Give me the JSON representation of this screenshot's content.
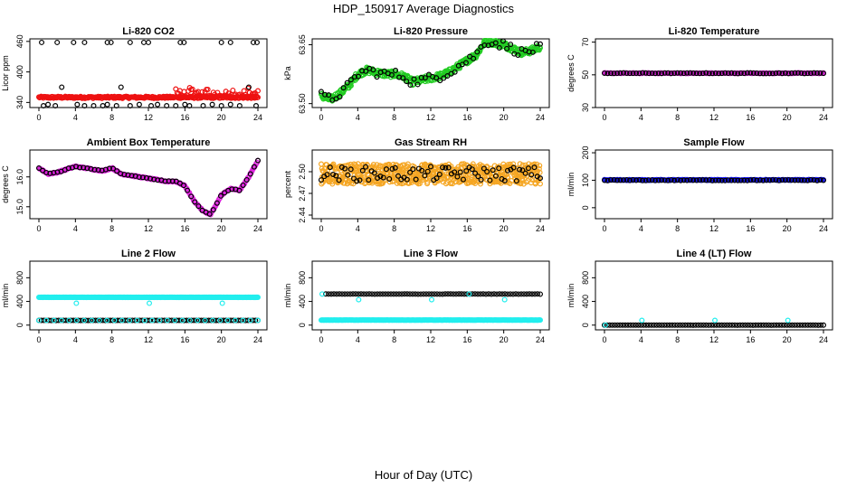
{
  "figure": {
    "title": "HDP_150917  Average Diagnostics",
    "xlabel": "Hour of Day (UTC)"
  },
  "colors": {
    "black": "#000000",
    "red": "#ee1111",
    "green": "#22cc22",
    "magenta": "#dd22dd",
    "orange": "#f5a623",
    "blue": "#1a1aff",
    "cyan": "#22eeee"
  },
  "chart_data": [
    {
      "id": "co2",
      "type": "scatter",
      "title": "Li-820 CO2",
      "ylabel": "Licor ppm",
      "xlim": [
        0,
        24
      ],
      "ylim": [
        330,
        465
      ],
      "xticks": [
        "0",
        "4",
        "8",
        "12",
        "16",
        "20",
        "24"
      ],
      "yticks": [
        "340",
        "400",
        "460"
      ],
      "series": [
        {
          "name": "main",
          "color": "red",
          "fn": "flat",
          "base": 350,
          "noise": 2,
          "n": 300
        },
        {
          "name": "spikes",
          "color": "red",
          "fn": "spike",
          "base": 352,
          "amp": 22,
          "n": 60,
          "start": 15
        },
        {
          "name": "high",
          "color": "black",
          "values": [
            [
              0.3,
              458
            ],
            [
              2,
              458
            ],
            [
              3.8,
              458
            ],
            [
              5,
              458
            ],
            [
              7.5,
              458
            ],
            [
              7.9,
              458
            ],
            [
              10,
              458
            ],
            [
              11.5,
              458
            ],
            [
              12,
              458
            ],
            [
              15.5,
              458
            ],
            [
              15.9,
              458
            ],
            [
              20,
              458
            ],
            [
              21,
              458
            ],
            [
              23.5,
              458
            ],
            [
              23.9,
              458
            ]
          ]
        },
        {
          "name": "low",
          "color": "black",
          "values": [
            [
              0.5,
              333
            ],
            [
              1,
              336
            ],
            [
              1.8,
              333
            ],
            [
              2.5,
              370
            ],
            [
              4.2,
              336
            ],
            [
              5,
              333
            ],
            [
              6,
              333
            ],
            [
              7,
              333
            ],
            [
              7.5,
              336
            ],
            [
              8.5,
              333
            ],
            [
              9,
              370
            ],
            [
              10,
              333
            ],
            [
              11,
              336
            ],
            [
              12.3,
              333
            ],
            [
              13,
              336
            ],
            [
              14,
              333
            ],
            [
              15,
              333
            ],
            [
              16,
              336
            ],
            [
              16.5,
              333
            ],
            [
              18,
              333
            ],
            [
              19,
              336
            ],
            [
              20,
              333
            ],
            [
              21,
              336
            ],
            [
              22,
              333
            ],
            [
              23,
              370
            ],
            [
              23.8,
              333
            ]
          ]
        }
      ]
    },
    {
      "id": "pressure",
      "type": "scatter",
      "title": "Li-820 Pressure",
      "ylabel": "kPa",
      "xlim": [
        0,
        24
      ],
      "ylim": [
        63.49,
        63.665
      ],
      "xticks": [
        "0",
        "4",
        "8",
        "12",
        "16",
        "20",
        "24"
      ],
      "yticks": [
        "63.50",
        "63.65"
      ],
      "series": [
        {
          "name": "main",
          "color": "green",
          "fn": "curve",
          "curve": [
            [
              0,
              63.52
            ],
            [
              1,
              63.51
            ],
            [
              2,
              63.525
            ],
            [
              3,
              63.545
            ],
            [
              4,
              63.575
            ],
            [
              5,
              63.585
            ],
            [
              6,
              63.58
            ],
            [
              7,
              63.575
            ],
            [
              8,
              63.575
            ],
            [
              9,
              63.57
            ],
            [
              10,
              63.555
            ],
            [
              11,
              63.56
            ],
            [
              12,
              63.565
            ],
            [
              13,
              63.57
            ],
            [
              14,
              63.58
            ],
            [
              15,
              63.595
            ],
            [
              16,
              63.61
            ],
            [
              17,
              63.625
            ],
            [
              18,
              63.66
            ],
            [
              19,
              63.655
            ],
            [
              20,
              63.65
            ],
            [
              21,
              63.64
            ],
            [
              22,
              63.63
            ],
            [
              23,
              63.635
            ],
            [
              24,
              63.645
            ]
          ],
          "noise": 0.008,
          "n": 420
        },
        {
          "name": "avg",
          "color": "black",
          "fn": "curve",
          "curve": [
            [
              0,
              63.52
            ],
            [
              1,
              63.51
            ],
            [
              2,
              63.525
            ],
            [
              3,
              63.545
            ],
            [
              4,
              63.575
            ],
            [
              5,
              63.585
            ],
            [
              6,
              63.58
            ],
            [
              7,
              63.575
            ],
            [
              8,
              63.575
            ],
            [
              9,
              63.57
            ],
            [
              10,
              63.555
            ],
            [
              11,
              63.56
            ],
            [
              12,
              63.565
            ],
            [
              13,
              63.57
            ],
            [
              14,
              63.58
            ],
            [
              15,
              63.595
            ],
            [
              16,
              63.61
            ],
            [
              17,
              63.625
            ],
            [
              18,
              63.66
            ],
            [
              19,
              63.655
            ],
            [
              20,
              63.65
            ],
            [
              21,
              63.64
            ],
            [
              22,
              63.63
            ],
            [
              23,
              63.635
            ],
            [
              24,
              63.645
            ]
          ],
          "noise": 0.012,
          "n": 60
        }
      ]
    },
    {
      "id": "licor_temp",
      "type": "scatter",
      "title": "Li-820 Temperature",
      "ylabel": "degrees C",
      "xlim": [
        0,
        24
      ],
      "ylim": [
        30,
        72
      ],
      "xticks": [
        "0",
        "4",
        "8",
        "12",
        "16",
        "20",
        "24"
      ],
      "yticks": [
        "30",
        "50",
        "70"
      ],
      "series": [
        {
          "name": "main",
          "color": "magenta",
          "fn": "flat",
          "base": 51,
          "noise": 0.2,
          "n": 200
        },
        {
          "name": "avg",
          "color": "black",
          "fn": "flat",
          "base": 51,
          "noise": 0.2,
          "n": 70
        }
      ]
    },
    {
      "id": "box_temp",
      "type": "scatter",
      "title": "Ambient Box Temperature",
      "ylabel": "degrees C",
      "xlim": [
        0,
        24
      ],
      "ylim": [
        14.6,
        16.9
      ],
      "xticks": [
        "0",
        "4",
        "8",
        "12",
        "16",
        "20",
        "24"
      ],
      "yticks": [
        "15.0",
        "16.0"
      ],
      "series": [
        {
          "name": "main",
          "color": "magenta",
          "fn": "curve",
          "curve": [
            [
              0,
              16.3
            ],
            [
              1,
              16.1
            ],
            [
              2,
              16.15
            ],
            [
              3,
              16.25
            ],
            [
              4,
              16.35
            ],
            [
              5,
              16.3
            ],
            [
              6,
              16.25
            ],
            [
              7,
              16.2
            ],
            [
              8,
              16.3
            ],
            [
              9,
              16.1
            ],
            [
              10,
              16.05
            ],
            [
              11,
              16.0
            ],
            [
              12,
              15.95
            ],
            [
              13,
              15.9
            ],
            [
              14,
              15.85
            ],
            [
              15,
              15.85
            ],
            [
              16,
              15.7
            ],
            [
              17,
              15.2
            ],
            [
              18,
              14.85
            ],
            [
              18.8,
              14.75
            ],
            [
              19.5,
              15.1
            ],
            [
              20,
              15.4
            ],
            [
              21,
              15.6
            ],
            [
              22,
              15.55
            ],
            [
              23,
              16.0
            ],
            [
              24,
              16.55
            ]
          ],
          "noise": 0.02,
          "n": 260
        },
        {
          "name": "avg",
          "color": "black",
          "fn": "curve",
          "curve": [
            [
              0,
              16.3
            ],
            [
              1,
              16.1
            ],
            [
              2,
              16.15
            ],
            [
              3,
              16.25
            ],
            [
              4,
              16.35
            ],
            [
              5,
              16.3
            ],
            [
              6,
              16.25
            ],
            [
              7,
              16.2
            ],
            [
              8,
              16.3
            ],
            [
              9,
              16.1
            ],
            [
              10,
              16.05
            ],
            [
              11,
              16.0
            ],
            [
              12,
              15.95
            ],
            [
              13,
              15.9
            ],
            [
              14,
              15.85
            ],
            [
              15,
              15.85
            ],
            [
              16,
              15.7
            ],
            [
              17,
              15.2
            ],
            [
              18,
              14.85
            ],
            [
              18.8,
              14.75
            ],
            [
              19.5,
              15.1
            ],
            [
              20,
              15.4
            ],
            [
              21,
              15.6
            ],
            [
              22,
              15.55
            ],
            [
              23,
              16.0
            ],
            [
              24,
              16.55
            ]
          ],
          "noise": 0.015,
          "n": 60
        }
      ]
    },
    {
      "id": "rh",
      "type": "scatter",
      "title": "Gas Stream RH",
      "ylabel": "percent",
      "xlim": [
        0,
        24
      ],
      "ylim": [
        2.435,
        2.53
      ],
      "xticks": [
        "0",
        "4",
        "8",
        "12",
        "16",
        "20",
        "24"
      ],
      "yticks": [
        "2.44",
        "2.47",
        "2.50"
      ],
      "series": [
        {
          "name": "main",
          "color": "orange",
          "fn": "flat",
          "base": 2.497,
          "noise": 0.014,
          "n": 650
        },
        {
          "name": "avg",
          "color": "black",
          "fn": "flat",
          "base": 2.497,
          "noise": 0.01,
          "n": 75
        }
      ]
    },
    {
      "id": "sample_flow",
      "type": "scatter",
      "title": "Sample Flow",
      "ylabel": "ml/min",
      "xlim": [
        0,
        24
      ],
      "ylim": [
        -40,
        210
      ],
      "xticks": [
        "0",
        "4",
        "8",
        "12",
        "16",
        "20",
        "24"
      ],
      "yticks": [
        "0",
        "100",
        "200"
      ],
      "series": [
        {
          "name": "main",
          "color": "blue",
          "fn": "flat",
          "base": 101,
          "noise": 1.5,
          "n": 240
        },
        {
          "name": "avg",
          "color": "black",
          "fn": "flat",
          "base": 100,
          "noise": 1.5,
          "n": 70
        }
      ]
    },
    {
      "id": "line2",
      "type": "scatter",
      "title": "Line 2 Flow",
      "ylabel": "ml/min",
      "xlim": [
        0,
        24
      ],
      "ylim": [
        -80,
        1080
      ],
      "xticks": [
        "0",
        "4",
        "8",
        "12",
        "16",
        "20",
        "24"
      ],
      "yticks": [
        "0",
        "400",
        "800"
      ],
      "series": [
        {
          "name": "high",
          "color": "cyan",
          "fn": "flat",
          "base": 470,
          "noise": 2,
          "n": 330
        },
        {
          "name": "low",
          "color": "black",
          "fn": "flat",
          "base": 80,
          "noise": 1,
          "n": 90
        },
        {
          "name": "low2",
          "color": "cyan",
          "fn": "flat",
          "base": 80,
          "noise": 1,
          "n": 30
        },
        {
          "name": "dips",
          "color": "cyan",
          "values": [
            [
              4.1,
              370
            ],
            [
              12.1,
              370
            ],
            [
              20.1,
              370
            ]
          ]
        }
      ]
    },
    {
      "id": "line3",
      "type": "scatter",
      "title": "Line 3 Flow",
      "ylabel": "ml/min",
      "xlim": [
        0,
        24
      ],
      "ylim": [
        -80,
        1080
      ],
      "xticks": [
        "0",
        "4",
        "8",
        "12",
        "16",
        "20",
        "24"
      ],
      "yticks": [
        "0",
        "400",
        "800"
      ],
      "series": [
        {
          "name": "high",
          "color": "black",
          "fn": "flat",
          "base": 525,
          "noise": 1.5,
          "n": 80,
          "start": 0.5
        },
        {
          "name": "low",
          "color": "cyan",
          "fn": "flat",
          "base": 85,
          "noise": 1.5,
          "n": 330
        },
        {
          "name": "extras",
          "color": "cyan",
          "values": [
            [
              0.1,
              525
            ],
            [
              4.1,
              430
            ],
            [
              12.1,
              430
            ],
            [
              16.2,
              525
            ],
            [
              20.1,
              430
            ]
          ]
        }
      ]
    },
    {
      "id": "line4",
      "type": "scatter",
      "title": "Line 4 (LT) Flow",
      "ylabel": "ml/min",
      "xlim": [
        0,
        24
      ],
      "ylim": [
        -80,
        1080
      ],
      "xticks": [
        "0",
        "4",
        "8",
        "12",
        "16",
        "20",
        "24"
      ],
      "yticks": [
        "0",
        "400",
        "800"
      ],
      "series": [
        {
          "name": "main",
          "color": "black",
          "fn": "flat",
          "base": 0,
          "noise": 1,
          "n": 85
        },
        {
          "name": "extras",
          "color": "cyan",
          "values": [
            [
              0.1,
              0
            ],
            [
              4.1,
              80
            ],
            [
              12.1,
              80
            ],
            [
              20.1,
              80
            ]
          ]
        }
      ]
    }
  ]
}
